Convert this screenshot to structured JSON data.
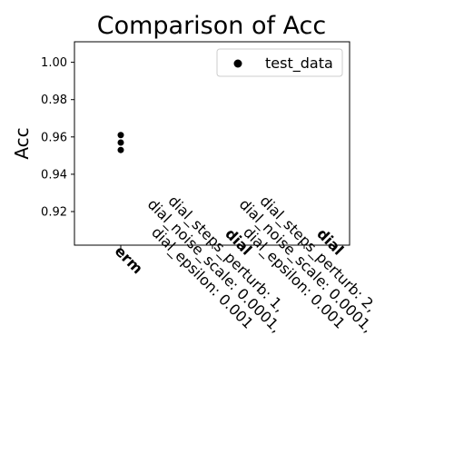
{
  "chart_data": {
    "type": "scatter",
    "title": "Comparison of Acc",
    "xlabel": "",
    "ylabel": "Acc",
    "ylim": [
      0.902,
      1.011
    ],
    "yticks": [
      "0.92",
      "0.94",
      "0.96",
      "0.98",
      "1.00"
    ],
    "categories": [
      {
        "name": "erm",
        "params": []
      },
      {
        "name": "dial",
        "params": [
          "dial_steps_perturb: 1,",
          "dial_noise_scale: 0.0001,",
          "dial_epsilon: 0.001"
        ]
      },
      {
        "name": "dial",
        "params": [
          "dial_steps_perturb: 2,",
          "dial_noise_scale: 0.0001,",
          "dial_epsilon: 0.001"
        ]
      }
    ],
    "series": [
      {
        "name": "test_data",
        "color": "#000000",
        "points": [
          {
            "category": 0,
            "value": 0.953
          },
          {
            "category": 0,
            "value": 0.957
          },
          {
            "category": 0,
            "value": 0.961
          }
        ]
      }
    ],
    "grid": false,
    "legend": "top-right"
  }
}
